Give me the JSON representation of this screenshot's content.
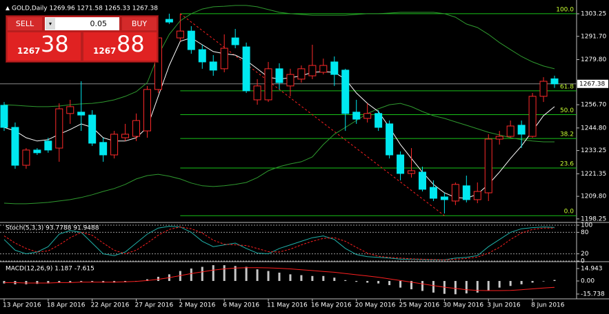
{
  "chart_data": [
    {
      "type": "candlestick",
      "title": "GOLD,Daily 1269.96 1271.58 1265.33 1267.38",
      "categories": [
        "13 Apr 2016",
        null,
        null,
        null,
        "18 Apr 2016",
        null,
        null,
        null,
        "22 Apr 2016",
        null,
        null,
        null,
        "27 Apr 2016",
        null,
        null,
        null,
        "2 May 2016",
        null,
        null,
        null,
        "6 May 2016",
        null,
        null,
        null,
        "11 May 2016",
        null,
        null,
        null,
        "16 May 2016",
        null,
        null,
        null,
        "20 May 2016",
        null,
        null,
        null,
        "25 May 2016",
        null,
        null,
        null,
        "30 May 2016",
        null,
        null,
        null,
        "3 Jun 2016",
        null,
        null,
        null,
        "8 Jun 2016",
        null,
        null
      ],
      "open": [
        1256.4,
        1245.1,
        1225.7,
        1233.5,
        1238.1,
        1234.5,
        1252.2,
        1252.9,
        1251.4,
        1237.4,
        1231.0,
        1239.8,
        1240.5,
        1243.3,
        1264.5,
        1300.4,
        1290.9,
        1294.4,
        1284.9,
        1278.6,
        1275.1,
        1290.9,
        1286.3,
        1259.2,
        1259.2,
        1275.1,
        1266.3,
        1269.8,
        1271.5,
        1273.3,
        1278.6,
        1274.4,
        1252.9,
        1249.7,
        1252.2,
        1246.9,
        1231.0,
        1221.5,
        1222.2,
        1214.4,
        1209.5,
        1207.4,
        1215.2,
        1208.1,
        1211.6,
        1239.1,
        1240.5,
        1246.2,
        1240.5,
        1261.0,
        1269.96
      ],
      "high": [
        1258.1,
        1247.6,
        1234.5,
        1234.5,
        1239.8,
        1257.4,
        1259.2,
        1268.7,
        1253.9,
        1239.8,
        1243.3,
        1246.9,
        1252.2,
        1266.3,
        1292.7,
        1303.3,
        1303.3,
        1296.9,
        1287.4,
        1282.1,
        1292.7,
        1295.5,
        1288.5,
        1269.8,
        1278.6,
        1277.9,
        1275.1,
        1276.8,
        1287.4,
        1280.3,
        1281.4,
        1275.1,
        1259.2,
        1257.4,
        1253.9,
        1248.6,
        1232.8,
        1234.5,
        1225.0,
        1218.0,
        1211.6,
        1216.9,
        1220.4,
        1216.9,
        1241.6,
        1243.3,
        1248.6,
        1248.6,
        1262.7,
        1270.8,
        1271.58
      ],
      "low": [
        1243.3,
        1223.9,
        1223.9,
        1231.0,
        1232.1,
        1227.5,
        1246.9,
        1243.3,
        1235.6,
        1227.5,
        1229.2,
        1238.1,
        1238.1,
        1239.8,
        1262.7,
        1298.0,
        1289.2,
        1282.8,
        1275.1,
        1271.5,
        1273.3,
        1285.6,
        1262.7,
        1256.7,
        1258.1,
        1264.5,
        1261.0,
        1268.0,
        1269.8,
        1272.2,
        1266.3,
        1243.3,
        1246.9,
        1247.6,
        1243.3,
        1229.2,
        1218.0,
        1219.4,
        1212.3,
        1207.4,
        1201.0,
        1205.3,
        1206.7,
        1206.3,
        1207.4,
        1236.3,
        1239.8,
        1234.5,
        1239.8,
        1258.1,
        1265.33
      ],
      "close": [
        1245.1,
        1225.7,
        1233.5,
        1232.1,
        1233.5,
        1254.6,
        1255.7,
        1251.4,
        1237.0,
        1231.0,
        1241.6,
        1241.6,
        1248.6,
        1264.5,
        1290.9,
        1299.0,
        1294.4,
        1284.9,
        1278.6,
        1274.4,
        1285.6,
        1287.4,
        1263.8,
        1266.3,
        1275.1,
        1268.0,
        1272.2,
        1275.1,
        1276.8,
        1276.8,
        1272.2,
        1252.2,
        1249.3,
        1252.2,
        1245.1,
        1231.0,
        1221.5,
        1222.9,
        1213.4,
        1208.8,
        1208.1,
        1215.9,
        1208.1,
        1212.3,
        1239.1,
        1240.5,
        1245.8,
        1241.6,
        1261.0,
        1268.7,
        1267.38
      ],
      "up_color": "#ff2a2a",
      "down_color": "#00e8f0",
      "series": [
        {
          "color": "#2f9a2f",
          "values": [
            1256.7,
            1256.4,
            1256.0,
            1255.7,
            1255.7,
            1256.0,
            1256.7,
            1257.1,
            1257.4,
            1258.1,
            1259.2,
            1261.0,
            1263.4,
            1268.0,
            1282.1,
            1292.7,
            1299.7,
            1303.3,
            1305.7,
            1306.8,
            1307.1,
            1307.5,
            1307.5,
            1306.8,
            1305.4,
            1304.0,
            1303.3,
            1302.9,
            1302.5,
            1302.5,
            1302.5,
            1302.5,
            1302.9,
            1303.3,
            1303.3,
            1303.6,
            1304.0,
            1304.0,
            1304.0,
            1304.0,
            1303.3,
            1301.5,
            1298.0,
            1296.2,
            1292.7,
            1288.5,
            1284.9,
            1281.4,
            1278.6,
            1276.5,
            1275.1
          ]
        },
        {
          "color": "#2f9a2f",
          "values": [
            1206.3,
            1206.0,
            1206.0,
            1206.3,
            1206.7,
            1207.4,
            1208.1,
            1209.2,
            1210.6,
            1212.3,
            1213.8,
            1215.9,
            1218.7,
            1220.4,
            1221.1,
            1220.1,
            1218.7,
            1216.6,
            1215.2,
            1214.8,
            1215.2,
            1215.9,
            1216.9,
            1219.4,
            1222.9,
            1225.0,
            1226.4,
            1227.5,
            1230.0,
            1236.3,
            1241.6,
            1245.1,
            1248.6,
            1252.2,
            1254.6,
            1256.7,
            1257.4,
            1255.7,
            1253.2,
            1251.1,
            1249.7,
            1247.9,
            1246.2,
            1244.4,
            1242.6,
            1241.2,
            1239.8,
            1238.8,
            1238.1,
            1237.7,
            1237.7
          ]
        },
        {
          "color": "#ffffff",
          "values": [
            1245.1,
            1243.3,
            1239.8,
            1238.1,
            1238.8,
            1241.6,
            1244.0,
            1246.9,
            1245.1,
            1239.8,
            1238.1,
            1238.1,
            1239.8,
            1245.1,
            1261.0,
            1276.8,
            1289.2,
            1290.9,
            1287.4,
            1283.9,
            1282.8,
            1282.1,
            1279.3,
            1275.1,
            1270.8,
            1269.8,
            1270.5,
            1271.5,
            1273.3,
            1273.6,
            1273.3,
            1269.8,
            1262.7,
            1257.4,
            1253.2,
            1245.1,
            1236.3,
            1229.2,
            1222.2,
            1215.9,
            1211.6,
            1209.2,
            1208.8,
            1210.9,
            1215.9,
            1222.2,
            1229.2,
            1235.6,
            1243.3,
            1251.1,
            1255.7
          ]
        }
      ],
      "fibonacci": {
        "color": "#19c319",
        "label_color": "#c8ff32",
        "levels": [
          {
            "value": 100,
            "label": "100.0"
          },
          61.8,
          {
            "value": 50,
            "label": "50.0"
          },
          38.2,
          23.6,
          {
            "value": 0,
            "label": "0.0"
          }
        ],
        "prices": [
          1303.3,
          1263.8,
          1251.6,
          1239.4,
          1224.3,
          1199.9
        ]
      },
      "current_price": 1267.38,
      "ylim": [
        1196.8,
        1310.3
      ],
      "yticks": [
        1303.25,
        {
          "value": 1291.7,
          "label": "1291.70"
        },
        {
          "value": 1279.8,
          "label": "1279.80"
        },
        {
          "value": 1256.7,
          "label": "1256.70"
        },
        {
          "value": 1244.8,
          "label": "1244.80"
        },
        1233.25,
        1221.35,
        {
          "value": 1209.8,
          "label": "1209.80"
        },
        1198.25
      ]
    },
    {
      "type": "line",
      "title": "Stoch(5,3,3) 93.7788 91.9488",
      "series": [
        {
          "color": "#20b2aa",
          "dashed": false,
          "values": [
            60,
            30,
            20,
            25,
            40,
            75,
            85,
            80,
            50,
            20,
            15,
            25,
            50,
            75,
            92,
            97,
            95,
            80,
            55,
            40,
            45,
            50,
            35,
            22,
            20,
            35,
            45,
            55,
            65,
            70,
            60,
            35,
            18,
            12,
            10,
            8,
            5,
            5,
            4,
            3,
            3,
            8,
            10,
            15,
            40,
            60,
            80,
            90,
            93,
            95,
            93.7788
          ]
        },
        {
          "color": "#ff2020",
          "dashed": true,
          "values": [
            70,
            50,
            35,
            25,
            28,
            45,
            65,
            80,
            72,
            50,
            30,
            20,
            30,
            50,
            72,
            88,
            95,
            90,
            78,
            58,
            47,
            45,
            43,
            35,
            26,
            25,
            33,
            45,
            55,
            63,
            65,
            55,
            38,
            22,
            13,
            10,
            8,
            6,
            5,
            4,
            3,
            5,
            7,
            11,
            22,
            38,
            60,
            78,
            88,
            92,
            91.9488
          ]
        }
      ],
      "ylim": [
        0,
        100
      ],
      "yticks": [
        100,
        80,
        20,
        0
      ]
    },
    {
      "type": "bar",
      "title": "MACD(12,26,9) 1.187 -7.615",
      "series": [
        {
          "type": "bar",
          "color": "#c8c8c8",
          "values": [
            -3,
            -4,
            -4,
            -3.5,
            -3,
            -2,
            -1.5,
            -1,
            -1,
            -2,
            -2,
            -1.5,
            0,
            2,
            5,
            8,
            12,
            15,
            17,
            19,
            19,
            18,
            17,
            14,
            12,
            10,
            8,
            7,
            6,
            6,
            4,
            1,
            -1,
            -2,
            -3,
            -5,
            -8,
            -10,
            -12,
            -14,
            -15.5,
            -16,
            -15,
            -14,
            -12,
            -8,
            -6,
            -4,
            -2,
            -0.5,
            1.187
          ]
        },
        {
          "type": "line",
          "color": "#ff2020",
          "values": [
            -2,
            -2,
            -2.5,
            -2.5,
            -2.5,
            -2,
            -2,
            -1.5,
            -1.5,
            -1.5,
            -1.5,
            -1,
            -0.5,
            0.5,
            2,
            4,
            6.5,
            9,
            11,
            13,
            14.5,
            15.5,
            16,
            16,
            15.8,
            15.3,
            14.5,
            13.5,
            12.5,
            11.5,
            10.5,
            9,
            7.5,
            6,
            4.5,
            2.5,
            0.5,
            -1.5,
            -3.5,
            -5.5,
            -7.5,
            -9,
            -10.5,
            -11.3,
            -11.6,
            -11.6,
            -11.3,
            -10.5,
            -9.5,
            -8.5,
            -7.615
          ]
        }
      ],
      "ylim": [
        -20.7,
        22.4
      ],
      "yticks": [
        14.943,
        {
          "value": 0,
          "label": "0.00"
        },
        -15.738
      ]
    }
  ],
  "trade_panel": {
    "sell": "SELL",
    "buy": "BUY",
    "lot": 0.05,
    "bid": {
      "small": 1267,
      "big": 38
    },
    "ask": {
      "small": 1267,
      "big": 88
    }
  }
}
